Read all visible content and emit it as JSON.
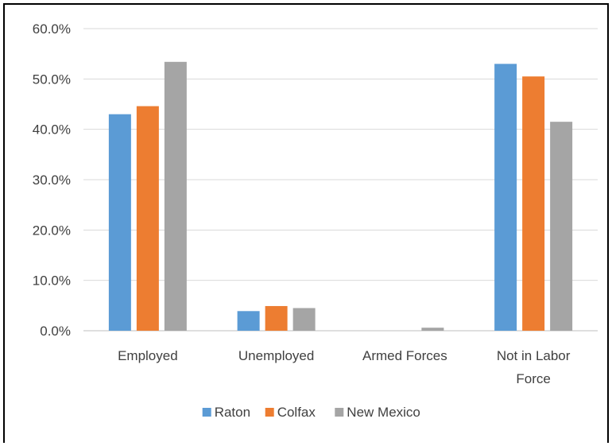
{
  "chart_data": {
    "type": "bar",
    "categories": [
      "Employed",
      "Unemployed",
      "Armed Forces",
      "Not in Labor Force"
    ],
    "series": [
      {
        "name": "Raton",
        "color": "#5b9bd5",
        "values": [
          43.0,
          3.9,
          0.0,
          53.0
        ]
      },
      {
        "name": "Colfax",
        "color": "#ed7d31",
        "values": [
          44.6,
          4.9,
          0.0,
          50.5
        ]
      },
      {
        "name": "New Mexico",
        "color": "#a5a5a5",
        "values": [
          53.4,
          4.5,
          0.6,
          41.5
        ]
      }
    ],
    "yticks": [
      "0.0%",
      "10.0%",
      "20.0%",
      "30.0%",
      "40.0%",
      "50.0%",
      "60.0%"
    ],
    "ylim": [
      0,
      60
    ],
    "grid": true,
    "legend_position": "bottom"
  }
}
